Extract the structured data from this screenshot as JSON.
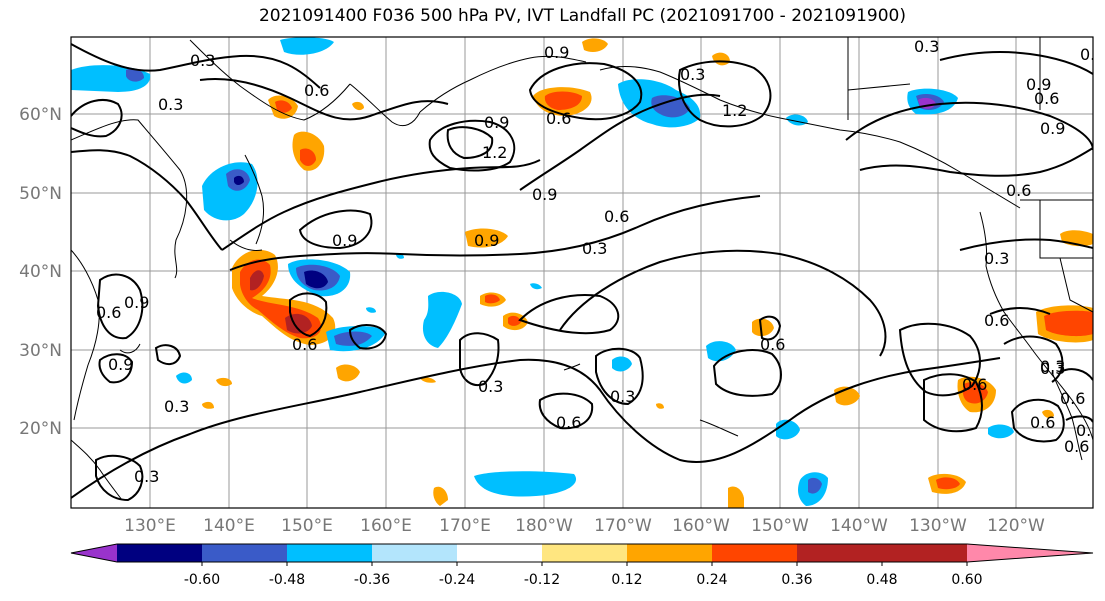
{
  "title": "2021091400 F036 500 hPa PV, IVT Landfall PC (2021091700 - 2021091900)",
  "lat_labels": [
    "60°N",
    "50°N",
    "40°N",
    "30°N",
    "20°N"
  ],
  "lon_labels": [
    "130°E",
    "140°E",
    "150°E",
    "160°E",
    "170°E",
    "180°W",
    "170°W",
    "160°W",
    "150°W",
    "140°W",
    "130°W",
    "120°W"
  ],
  "colorbar": {
    "colors": [
      "#9933cc",
      "#000080",
      "#3a5bc8",
      "#00bfff",
      "#b3e5fc",
      "#ffffff",
      "#ffe680",
      "#ffa500",
      "#ff4500",
      "#b22222",
      "#ff88aa"
    ],
    "tick_labels": [
      "-0.60",
      "-0.48",
      "-0.36",
      "-0.24",
      "-0.12",
      "0.12",
      "0.24",
      "0.36",
      "0.48",
      "0.60"
    ]
  },
  "contour_labels": [
    "0.3",
    "0.6",
    "0.3",
    "0.9",
    "0.9",
    "0.6",
    "0.3",
    "1.2",
    "0.9",
    "0.3",
    "0.9",
    "0.9",
    "1.2",
    "0.9",
    "0.9",
    "0.6",
    "0.3",
    "0.6",
    "0.6",
    "0.9",
    "0.9",
    "0.6",
    "0.3",
    "0.3",
    "0.6",
    "0.3",
    "0.6",
    "0.6",
    "0.3",
    "0.6",
    "0.3",
    "0.6",
    "0.6",
    "0.9",
    "0.6",
    "0.3",
    "0.6",
    "0.9",
    "0.3"
  ]
}
